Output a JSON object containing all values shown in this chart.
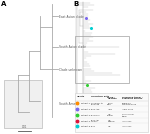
{
  "fig_bg": "#ffffff",
  "panel_A_label": "A",
  "panel_B_label": "B",
  "tree_color": "#aaaaaa",
  "clade_label_color": "#555555",
  "scale_label_color": "#555555"
}
